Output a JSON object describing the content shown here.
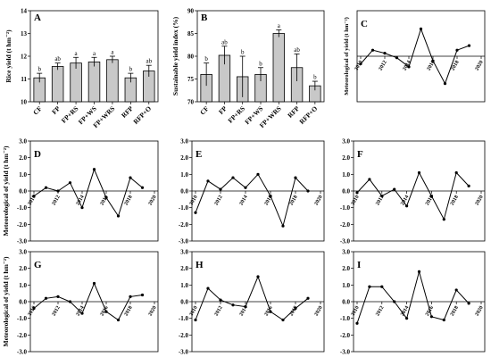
{
  "chart_data": [
    {
      "panel": "A",
      "type": "bar",
      "ylabel": "Rice yield (t hm⁻²)",
      "categories": [
        "CF",
        "FP",
        "FP+RS",
        "FP+WS",
        "FP+WRS",
        "RFP",
        "RFP+O"
      ],
      "values": [
        11.05,
        11.55,
        11.7,
        11.75,
        11.85,
        11.05,
        11.35
      ],
      "errors": [
        0.2,
        0.15,
        0.25,
        0.2,
        0.15,
        0.2,
        0.25
      ],
      "significance": [
        "b",
        "ab",
        "a",
        "a",
        "a",
        "b",
        "ab"
      ],
      "ylim": [
        10,
        14
      ],
      "yticks": [
        "10",
        "11",
        "12",
        "13",
        "14"
      ]
    },
    {
      "panel": "B",
      "type": "bar",
      "ylabel": "Sustainable yield index (%)",
      "categories": [
        "CF",
        "FP",
        "FP+RS",
        "FP+WS",
        "FP+WRS",
        "RFP",
        "RFP+O"
      ],
      "values": [
        76,
        80.2,
        75.5,
        76,
        85,
        77.5,
        73.5
      ],
      "errors": [
        2.5,
        2.0,
        4.5,
        1.5,
        0.8,
        3.0,
        1.0
      ],
      "significance": [
        "b",
        "ab",
        "b",
        "b",
        "a",
        "ab",
        "b"
      ],
      "ylim": [
        70,
        90
      ],
      "yticks": [
        "70",
        "75",
        "80",
        "85",
        "90"
      ]
    },
    {
      "panel": "C",
      "type": "line",
      "ylabel": "Meteorological of yield (t hm⁻²)",
      "x": [
        2010,
        2011,
        2012,
        2013,
        2014,
        2015,
        2016,
        2017,
        2018,
        2019
      ],
      "y": [
        -0.5,
        0.4,
        0.2,
        -0.1,
        -0.7,
        1.8,
        -0.3,
        -1.8,
        0.4,
        0.7
      ],
      "xticks": [
        "2010",
        "2012",
        "2014",
        "2016",
        "2018",
        "2020"
      ],
      "ylim": [
        -3,
        3
      ],
      "yticks": []
    },
    {
      "panel": "D",
      "type": "line",
      "ylabel": "Meteorological of yield (t hm⁻²)",
      "x": [
        2010,
        2011,
        2012,
        2013,
        2014,
        2015,
        2016,
        2017,
        2018,
        2019
      ],
      "y": [
        -0.3,
        0.2,
        0.0,
        0.5,
        -1.0,
        1.3,
        -0.4,
        -1.5,
        0.8,
        0.2
      ],
      "xticks": [
        "2010",
        "2012",
        "2014",
        "2016",
        "2018",
        "2020"
      ],
      "ylim": [
        -3,
        3
      ],
      "yticks": [
        "-3.0",
        "-2.0",
        "-1.0",
        "0.0",
        "1.0",
        "2.0",
        "3.0"
      ]
    },
    {
      "panel": "E",
      "type": "line",
      "ylabel": "",
      "x": [
        2010,
        2011,
        2012,
        2013,
        2014,
        2015,
        2016,
        2017,
        2018,
        2019
      ],
      "y": [
        -1.3,
        0.6,
        0.1,
        0.8,
        0.2,
        1.0,
        -0.3,
        -2.1,
        0.8,
        0.0
      ],
      "xticks": [
        "2010",
        "2012",
        "2014",
        "2016",
        "2018",
        "2020"
      ],
      "ylim": [
        -3,
        3
      ],
      "yticks": [
        "-3.0",
        "-2.0",
        "-1.0",
        "0.0",
        "1.0",
        "2.0",
        "3.0"
      ]
    },
    {
      "panel": "F",
      "type": "line",
      "ylabel": "",
      "x": [
        2010,
        2011,
        2012,
        2013,
        2014,
        2015,
        2016,
        2017,
        2018,
        2019
      ],
      "y": [
        -0.1,
        0.7,
        -0.3,
        0.1,
        -0.9,
        1.1,
        -0.3,
        -1.7,
        1.1,
        0.3
      ],
      "xticks": [
        "2010",
        "2012",
        "2014",
        "2016",
        "2018",
        "2020"
      ],
      "ylim": [
        -3,
        3
      ],
      "yticks": [
        "-3.0",
        "-2.0",
        "-1.0",
        "0.0",
        "1.0",
        "2.0",
        "3.0"
      ]
    },
    {
      "panel": "G",
      "type": "line",
      "ylabel": "Meteorological of yield (t hm⁻²)",
      "x": [
        2010,
        2011,
        2012,
        2013,
        2014,
        2015,
        2016,
        2017,
        2018,
        2019
      ],
      "y": [
        -0.4,
        0.2,
        0.3,
        0.0,
        -0.7,
        1.1,
        -0.6,
        -1.1,
        0.3,
        0.4
      ],
      "xticks": [
        "2010",
        "2012",
        "2014",
        "2016",
        "2018",
        "2020"
      ],
      "ylim": [
        -3,
        3
      ],
      "yticks": [
        "-3.0",
        "-2.0",
        "-1.0",
        "0.0",
        "1.0",
        "2.0",
        "3.0"
      ]
    },
    {
      "panel": "H",
      "type": "line",
      "ylabel": "",
      "x": [
        2010,
        2011,
        2012,
        2013,
        2014,
        2015,
        2016,
        2017,
        2018,
        2019
      ],
      "y": [
        -1.1,
        0.8,
        0.1,
        -0.2,
        -0.3,
        1.5,
        -0.6,
        -1.1,
        -0.4,
        0.2
      ],
      "xticks": [
        "2010",
        "2012",
        "2014",
        "2016",
        "2018",
        "2020"
      ],
      "ylim": [
        -3,
        3
      ],
      "yticks": [
        "-3.0",
        "-2.0",
        "-1.0",
        "0.0",
        "1.0",
        "2.0",
        "3.0"
      ]
    },
    {
      "panel": "I",
      "type": "line",
      "ylabel": "",
      "x": [
        2010,
        2011,
        2012,
        2013,
        2014,
        2015,
        2016,
        2017,
        2018,
        2019
      ],
      "y": [
        -1.3,
        0.9,
        0.9,
        0.0,
        -1.0,
        1.8,
        -0.9,
        -1.1,
        0.7,
        -0.1
      ],
      "xticks": [
        "2010",
        "2012",
        "2014",
        "2016",
        "2018",
        "2020"
      ],
      "ylim": [
        -3,
        3
      ],
      "yticks": [
        "-3.0",
        "-2.0",
        "-1.0",
        "0.0",
        "1.0",
        "2.0",
        "3.0"
      ]
    }
  ]
}
